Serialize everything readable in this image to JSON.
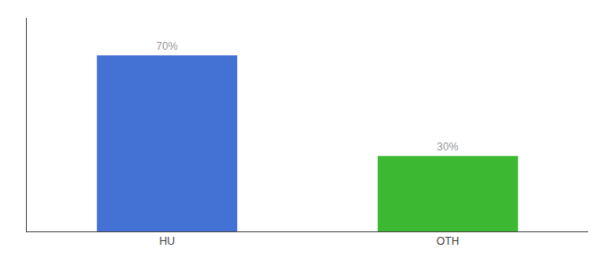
{
  "chart_data": {
    "type": "bar",
    "categories": [
      "HU",
      "OTH"
    ],
    "values": [
      70,
      30
    ],
    "value_labels": [
      "70%",
      "30%"
    ],
    "colors": [
      "#4472d4",
      "#3cb832"
    ],
    "ylim": [
      0,
      85
    ],
    "grid": false,
    "data_labels": true,
    "tick_labels": "x"
  }
}
